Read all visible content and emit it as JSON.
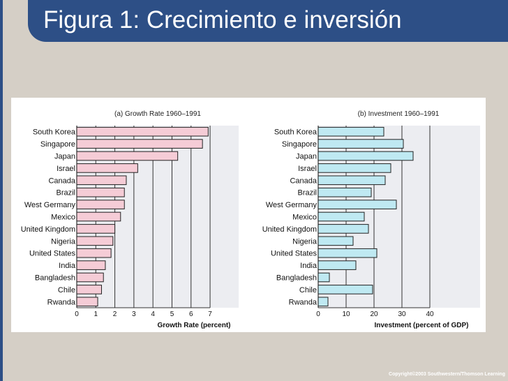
{
  "slide": {
    "title": "Figura 1: Crecimiento e inversión",
    "copyright": "Copyright©2003 Southwestern/Thomson Learning"
  },
  "colors": {
    "title_bar": "#2d4f86",
    "background": "#d5cfc6",
    "growth_bars": "#f5ccd6",
    "investment_bars": "#bfe9f2",
    "panel_shade": "#ecedf1"
  },
  "chart_data": [
    {
      "type": "bar",
      "orientation": "horizontal",
      "title": "(a) Growth Rate 1960–1991",
      "xlabel": "Growth Rate (percent)",
      "ylabel": "",
      "categories": [
        "South Korea",
        "Singapore",
        "Japan",
        "Israel",
        "Canada",
        "Brazil",
        "West Germany",
        "Mexico",
        "United Kingdom",
        "Nigeria",
        "United States",
        "India",
        "Bangladesh",
        "Chile",
        "Rwanda"
      ],
      "values": [
        6.9,
        6.6,
        5.3,
        3.2,
        2.6,
        2.5,
        2.5,
        2.3,
        2.0,
        1.9,
        1.8,
        1.5,
        1.4,
        1.3,
        1.1
      ],
      "xlim": [
        0,
        8.5
      ],
      "xticks": [
        0,
        1,
        2,
        3,
        4,
        5,
        6,
        7
      ],
      "grid": true
    },
    {
      "type": "bar",
      "orientation": "horizontal",
      "title": "(b) Investment 1960–1991",
      "xlabel": "Investment (percent of GDP)",
      "ylabel": "",
      "categories": [
        "South Korea",
        "Singapore",
        "Japan",
        "Israel",
        "Canada",
        "Brazil",
        "West Germany",
        "Mexico",
        "United Kingdom",
        "Nigeria",
        "United States",
        "India",
        "Bangladesh",
        "Chile",
        "Rwanda"
      ],
      "values": [
        23.5,
        30.5,
        34,
        26,
        24,
        19,
        28,
        16.5,
        18,
        12.5,
        21,
        13.5,
        4,
        19.5,
        3.5
      ],
      "xlim": [
        0,
        58
      ],
      "xticks": [
        0,
        10,
        20,
        30,
        40
      ],
      "grid": true
    }
  ]
}
